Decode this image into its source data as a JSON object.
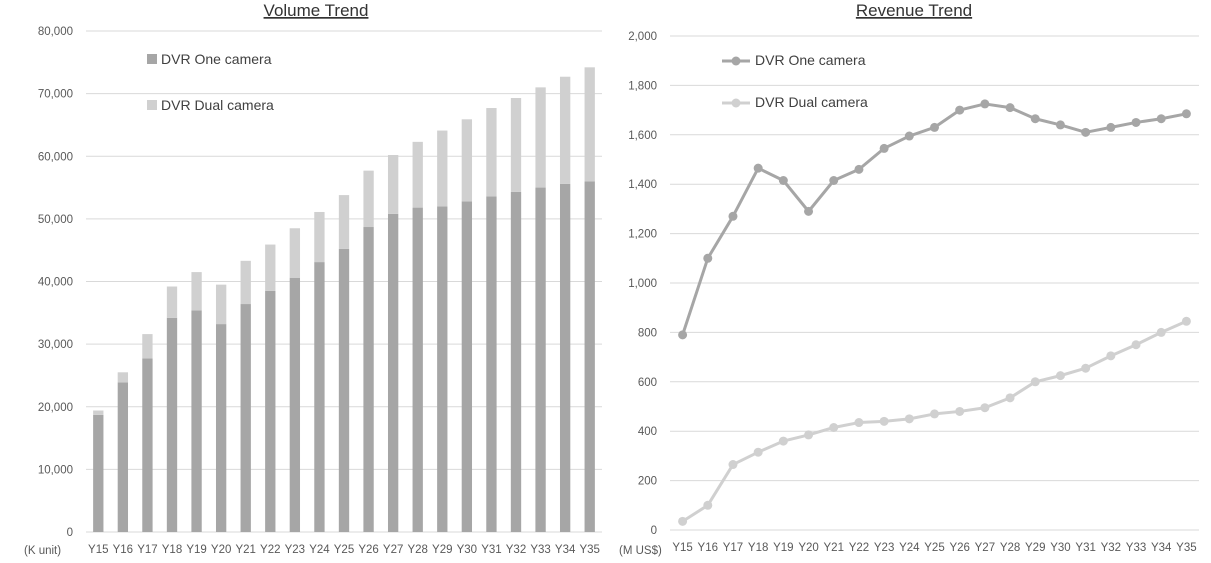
{
  "chart_data": [
    {
      "type": "bar",
      "stacked": true,
      "title": "Volume Trend",
      "unit_label": "(K unit)",
      "categories": [
        "Y15",
        "Y16",
        "Y17",
        "Y18",
        "Y19",
        "Y20",
        "Y21",
        "Y22",
        "Y23",
        "Y24",
        "Y25",
        "Y26",
        "Y27",
        "Y28",
        "Y29",
        "Y30",
        "Y31",
        "Y32",
        "Y33",
        "Y34",
        "Y35"
      ],
      "series": [
        {
          "name": "DVR One camera",
          "color": "#a6a6a6",
          "values": [
            18700,
            23900,
            27700,
            34200,
            35400,
            33200,
            36400,
            38500,
            40600,
            43100,
            45200,
            48700,
            50800,
            51800,
            52000,
            52800,
            53600,
            54300,
            55000,
            55600,
            56000
          ]
        },
        {
          "name": "DVR Dual camera",
          "color": "#d0d0d0",
          "values": [
            700,
            1600,
            3900,
            5000,
            6100,
            6300,
            6900,
            7400,
            7900,
            8000,
            8600,
            9000,
            9400,
            10500,
            12100,
            13100,
            14100,
            15000,
            16000,
            17100,
            18200
          ]
        }
      ],
      "ylim": [
        0,
        80000
      ],
      "yticks": [
        0,
        10000,
        20000,
        30000,
        40000,
        50000,
        60000,
        70000,
        80000
      ],
      "ytick_labels": [
        "0",
        "10,000",
        "20,000",
        "30,000",
        "40,000",
        "50,000",
        "60,000",
        "70,000",
        "80,000"
      ],
      "grid": true,
      "legend": "top-left"
    },
    {
      "type": "line",
      "title": "Revenue Trend",
      "unit_label": "(M US$)",
      "categories": [
        "Y15",
        "Y16",
        "Y17",
        "Y18",
        "Y19",
        "Y20",
        "Y21",
        "Y22",
        "Y23",
        "Y24",
        "Y25",
        "Y26",
        "Y27",
        "Y28",
        "Y29",
        "Y30",
        "Y31",
        "Y32",
        "Y33",
        "Y34",
        "Y35"
      ],
      "series": [
        {
          "name": "DVR One camera",
          "color": "#a6a6a6",
          "values": [
            790,
            1100,
            1270,
            1465,
            1415,
            1290,
            1415,
            1460,
            1545,
            1595,
            1630,
            1700,
            1725,
            1710,
            1665,
            1640,
            1610,
            1630,
            1650,
            1665,
            1685
          ]
        },
        {
          "name": "DVR Dual camera",
          "color": "#d0d0d0",
          "values": [
            35,
            100,
            265,
            315,
            360,
            385,
            415,
            435,
            440,
            450,
            470,
            480,
            495,
            535,
            600,
            625,
            655,
            705,
            750,
            800,
            845
          ]
        }
      ],
      "ylim": [
        0,
        2000
      ],
      "yticks": [
        0,
        200,
        400,
        600,
        800,
        1000,
        1200,
        1400,
        1600,
        1800,
        2000
      ],
      "ytick_labels": [
        "0",
        "200",
        "400",
        "600",
        "800",
        "1,000",
        "1,200",
        "1,400",
        "1,600",
        "1,800",
        "2,000"
      ],
      "grid": true,
      "legend": "top-left"
    }
  ]
}
